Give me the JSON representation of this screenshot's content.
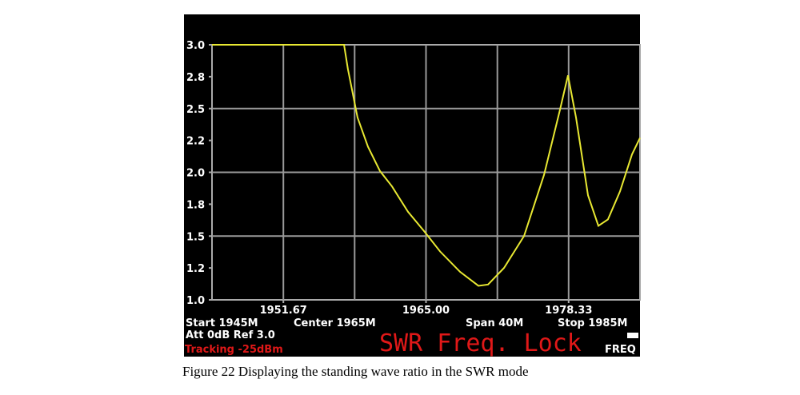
{
  "chart_data": {
    "type": "line",
    "xlim": [
      1945,
      1985
    ],
    "ylim": [
      1.0,
      3.0
    ],
    "xticks": [
      {
        "value": 1951.67,
        "label": "1951.67"
      },
      {
        "value": 1965,
        "label": "1965.00"
      },
      {
        "value": 1978.33,
        "label": "1978.33"
      }
    ],
    "xgrid": [
      1951.67,
      1958.33,
      1965,
      1971.67,
      1978.33
    ],
    "yticks": [
      {
        "value": 3,
        "label": "3.0"
      },
      {
        "value": 2.75,
        "label": "2.8"
      },
      {
        "value": 2.5,
        "label": "2.5"
      },
      {
        "value": 2.25,
        "label": "2.2"
      },
      {
        "value": 2,
        "label": "2.0"
      },
      {
        "value": 1.75,
        "label": "1.8"
      },
      {
        "value": 1.5,
        "label": "1.5"
      },
      {
        "value": 1.25,
        "label": "1.2"
      },
      {
        "value": 1,
        "label": "1.0"
      }
    ],
    "ygrid": [
      2.5,
      2.0,
      1.5
    ],
    "series": [
      {
        "color": "#e8e832",
        "x": [
          1945,
          1957.34,
          1957.7,
          1958.08,
          1958.6,
          1959.58,
          1960.7,
          1961.82,
          1963.32,
          1964.81,
          1966.31,
          1968.18,
          1969.9,
          1970.8,
          1972.29,
          1974.16,
          1976.03,
          1977.52,
          1978.27,
          1979.02,
          1980.14,
          1981.11,
          1982.0,
          1983.13,
          1984.25,
          1985
        ],
        "values": [
          3.0,
          3.0,
          2.81,
          2.65,
          2.43,
          2.2,
          2.01,
          1.89,
          1.69,
          1.54,
          1.38,
          1.22,
          1.11,
          1.12,
          1.25,
          1.5,
          1.98,
          2.49,
          2.76,
          2.43,
          1.82,
          1.58,
          1.63,
          1.85,
          2.14,
          2.27
        ]
      }
    ]
  },
  "status": {
    "start": "Start 1945M",
    "center": "Center 1965M",
    "span": "Span 40M",
    "stop": "Stop 1985M",
    "att": "Att 0dB Ref 3.0",
    "tracking": "Tracking -25dBm",
    "mode": "SWR Freq. Lock",
    "key": "FREQ"
  },
  "caption": "Figure 22 Displaying the standing wave ratio in the SWR mode"
}
